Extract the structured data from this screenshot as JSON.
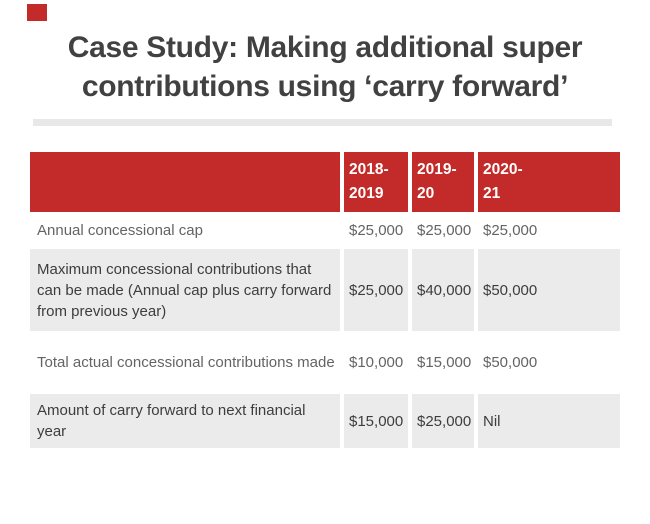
{
  "slide": {
    "background": "#ffffff",
    "accent_color": "#c32a2a",
    "title": "Case Study: Making additional super contributions using ‘carry forward’",
    "divider_color": "#e8e8e8"
  },
  "table": {
    "header_bg": "#c32a2a",
    "header_text_color": "#ffffff",
    "shaded_row_bg": "#ebebeb",
    "columns": [
      "2018-2019",
      "2019-20",
      "2020-21"
    ],
    "rows": [
      {
        "label": "Annual concessional cap",
        "values": [
          "$25,000",
          "$25,000",
          "$25,000"
        ]
      },
      {
        "label": "Maximum concessional contributions that can be made (Annual cap plus carry forward from previous year)",
        "values": [
          "$25,000",
          "$40,000",
          "$50,000"
        ]
      },
      {
        "label": "Total actual concessional contributions made",
        "values": [
          "$10,000",
          "$15,000",
          "$50,000"
        ]
      },
      {
        "label": "Amount of carry forward to next financial year",
        "values": [
          "$15,000",
          "$25,000",
          "Nil"
        ]
      }
    ]
  }
}
